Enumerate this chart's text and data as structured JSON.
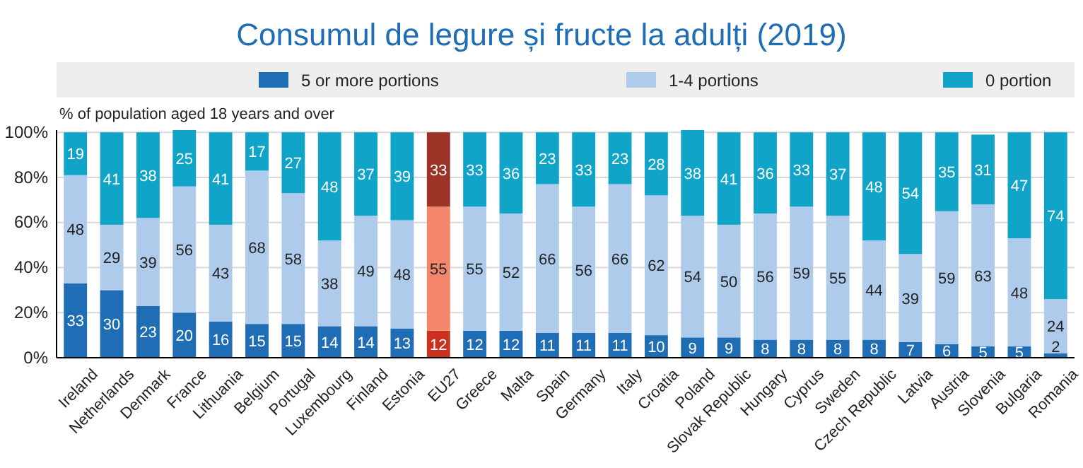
{
  "chart_data": {
    "type": "bar",
    "stacked": true,
    "title": "Consumul de legure și fructe la adulți (2019)",
    "ylabel": "% of population aged 18 years and over",
    "categories": [
      "Ireland",
      "Netherlands",
      "Denmark",
      "France",
      "Lithuania",
      "Belgium",
      "Portugal",
      "Luxembourg",
      "Finland",
      "Estonia",
      "EU27",
      "Greece",
      "Malta",
      "Spain",
      "Germany",
      "Italy",
      "Croatia",
      "Poland",
      "Slovak Republic",
      "Hungary",
      "Cyprus",
      "Sweden",
      "Czech Republic",
      "Latvia",
      "Austria",
      "Slovenia",
      "Bulgaria",
      "Romania"
    ],
    "series": [
      {
        "name": "5 or more portions",
        "color": "#1f6db5",
        "colors": [
          "#1f6db5",
          "#1f6db5",
          "#1f6db5",
          "#1f6db5",
          "#1f6db5",
          "#1f6db5",
          "#1f6db5",
          "#1f6db5",
          "#1f6db5",
          "#1f6db5",
          "#c8321e",
          "#1f6db5",
          "#1f6db5",
          "#1f6db5",
          "#1f6db5",
          "#1f6db5",
          "#1f6db5",
          "#1f6db5",
          "#1f6db5",
          "#1f6db5",
          "#1f6db5",
          "#1f6db5",
          "#1f6db5",
          "#1f6db5",
          "#1f6db5",
          "#1f6db5",
          "#1f6db5",
          "#1f6db5"
        ],
        "values": [
          33,
          30,
          23,
          20,
          16,
          15,
          15,
          14,
          14,
          13,
          12,
          12,
          12,
          11,
          11,
          11,
          10,
          9,
          9,
          8,
          8,
          8,
          8,
          7,
          6,
          5,
          5,
          2
        ]
      },
      {
        "name": "1-4 portions",
        "color": "#aecbeb",
        "colors": [
          "#aecbeb",
          "#aecbeb",
          "#aecbeb",
          "#aecbeb",
          "#aecbeb",
          "#aecbeb",
          "#aecbeb",
          "#aecbeb",
          "#aecbeb",
          "#aecbeb",
          "#f4876b",
          "#aecbeb",
          "#aecbeb",
          "#aecbeb",
          "#aecbeb",
          "#aecbeb",
          "#aecbeb",
          "#aecbeb",
          "#aecbeb",
          "#aecbeb",
          "#aecbeb",
          "#aecbeb",
          "#aecbeb",
          "#aecbeb",
          "#aecbeb",
          "#aecbeb",
          "#aecbeb",
          "#aecbeb"
        ],
        "values": [
          48,
          29,
          39,
          56,
          43,
          68,
          58,
          38,
          49,
          48,
          55,
          55,
          52,
          66,
          56,
          66,
          62,
          54,
          50,
          56,
          59,
          55,
          44,
          39,
          59,
          63,
          48,
          24
        ]
      },
      {
        "name": "0 portion",
        "color": "#10a5c8",
        "colors": [
          "#10a5c8",
          "#10a5c8",
          "#10a5c8",
          "#10a5c8",
          "#10a5c8",
          "#10a5c8",
          "#10a5c8",
          "#10a5c8",
          "#10a5c8",
          "#10a5c8",
          "#9b3327",
          "#10a5c8",
          "#10a5c8",
          "#10a5c8",
          "#10a5c8",
          "#10a5c8",
          "#10a5c8",
          "#10a5c8",
          "#10a5c8",
          "#10a5c8",
          "#10a5c8",
          "#10a5c8",
          "#10a5c8",
          "#10a5c8",
          "#10a5c8",
          "#10a5c8",
          "#10a5c8",
          "#10a5c8"
        ],
        "values": [
          19,
          41,
          38,
          25,
          41,
          17,
          27,
          48,
          37,
          39,
          33,
          33,
          36,
          23,
          33,
          23,
          28,
          38,
          41,
          36,
          33,
          37,
          48,
          54,
          35,
          31,
          47,
          74
        ]
      }
    ],
    "ylim": [
      0,
      101
    ],
    "yticks": [
      {
        "value": 0,
        "label": "0%"
      },
      {
        "value": 20,
        "label": "20%"
      },
      {
        "value": 40,
        "label": "40%"
      },
      {
        "value": 60,
        "label": "60%"
      },
      {
        "value": 80,
        "label": "80%"
      },
      {
        "value": 100,
        "label": "100%"
      }
    ],
    "grid": "y",
    "legend": "top",
    "data_labels": true
  }
}
